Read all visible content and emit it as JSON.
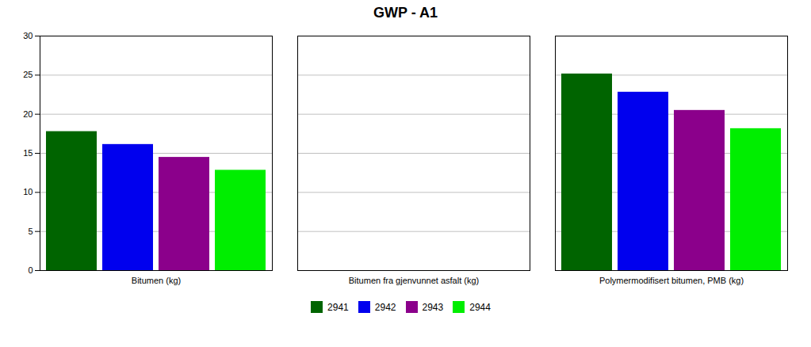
{
  "chart_data": {
    "type": "bar",
    "title": "GWP - A1",
    "categories": [
      "Bitumen (kg)",
      "Bitumen fra gjenvunnet asfalt (kg)",
      "Polymermodifisert bitumen, PMB (kg)"
    ],
    "series": [
      {
        "name": "2941",
        "color": "#006400",
        "values": [
          17.78012544,
          0.0,
          25.1537328
        ]
      },
      {
        "name": "2942",
        "color": "#0000EE",
        "values": [
          16.13165380992,
          0.0,
          22.8216224304
        ]
      },
      {
        "name": "2943",
        "color": "#8B008B",
        "values": [
          14.48318217984,
          0.0,
          20.4895120608
        ]
      },
      {
        "name": "2944",
        "color": "#00EE00",
        "values": [
          12.83471054976,
          0.0,
          18.1574016912
        ]
      }
    ],
    "ylim": [
      0,
      30
    ],
    "yticks": [
      0,
      5,
      10,
      15,
      20,
      25,
      30
    ],
    "grid": true,
    "legend": "bottom"
  }
}
